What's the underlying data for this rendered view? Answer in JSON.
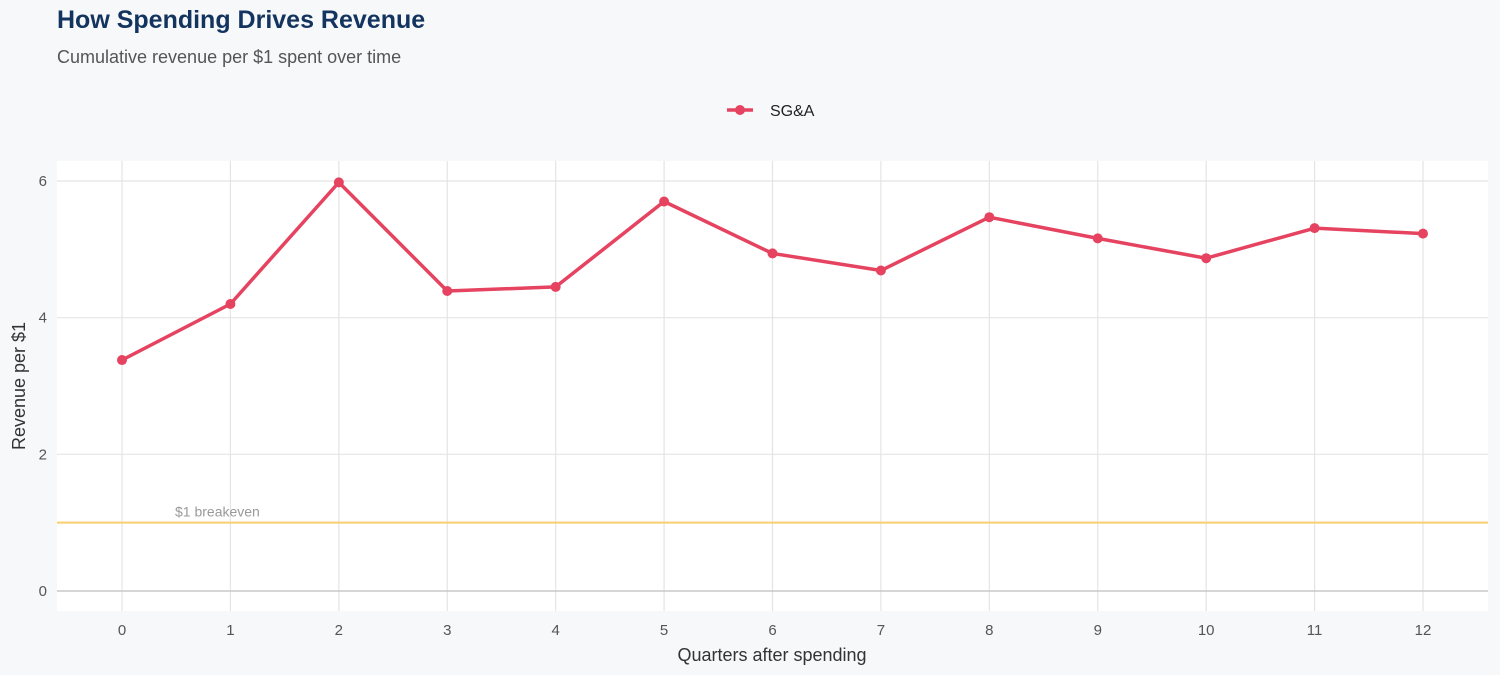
{
  "title": "How Spending Drives Revenue",
  "subtitle": "Cumulative revenue per $1 spent over time",
  "chart_data": {
    "type": "line",
    "xlabel": "Quarters after spending",
    "ylabel": "Revenue per $1",
    "x": [
      0,
      1,
      2,
      3,
      4,
      5,
      6,
      7,
      8,
      9,
      10,
      11,
      12
    ],
    "xlim": [
      -0.6,
      12.6
    ],
    "ylim": [
      -0.3,
      6.3
    ],
    "yticks": [
      0,
      2,
      4,
      6
    ],
    "grid": true,
    "legend": "top-center",
    "series": [
      {
        "name": "SG&A",
        "color": "#e5435f",
        "values": [
          3.38,
          4.2,
          5.98,
          4.39,
          4.45,
          5.7,
          4.94,
          4.69,
          5.47,
          5.16,
          4.87,
          5.31,
          5.23
        ]
      }
    ],
    "reference_line": {
      "y": 1,
      "label": "$1 breakeven",
      "color": "#f9cf6e"
    }
  }
}
